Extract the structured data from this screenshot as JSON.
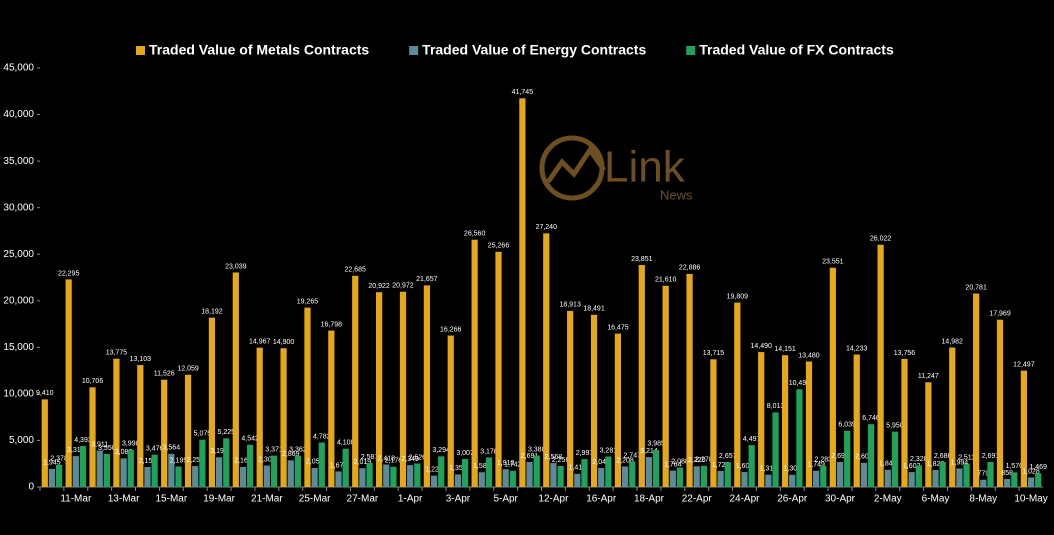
{
  "chart_data": {
    "type": "bar",
    "logo": {
      "text": "Link",
      "subtext": "News"
    },
    "categories": [
      null,
      "11-Mar",
      null,
      "13-Mar",
      null,
      "15-Mar",
      null,
      "19-Mar",
      null,
      "21-Mar",
      null,
      "25-Mar",
      null,
      "27-Mar",
      null,
      "1-Apr",
      null,
      "3-Apr",
      null,
      "5-Apr",
      null,
      "12-Apr",
      null,
      "16-Apr",
      null,
      "18-Apr",
      null,
      "22-Apr",
      null,
      "24-Apr",
      null,
      "26-Apr",
      null,
      "30-Apr",
      null,
      "2-May",
      null,
      "6-May",
      null,
      "8-May",
      null,
      "10-May"
    ],
    "series": [
      {
        "name": "Traded Value of Metals Contracts",
        "color": "#e6a817",
        "values": [
          9410,
          22295,
          10706,
          13775,
          13103,
          11526,
          12059,
          18192,
          23039,
          14967,
          14900,
          19265,
          16798,
          22685,
          20922,
          20972,
          21657,
          16266,
          26560,
          25266,
          41745,
          27240,
          18913,
          18491,
          16475,
          23851,
          21610,
          22886,
          13715,
          19809,
          14490,
          14151,
          13480,
          23551,
          14233,
          26022,
          13756,
          11247,
          14982,
          20781,
          17969,
          12497
        ],
        "value_labels": [
          "9,410",
          "22,295",
          "10,706",
          "13,775",
          "13,103",
          "11,526",
          "12,059",
          "18,192",
          "23,039",
          "14,967",
          "14,900",
          "19,265",
          "16,798",
          "22,685",
          "20,922",
          "20,972",
          "21,657",
          "16,266",
          "26,560",
          "25,266",
          "41,745",
          "27,240",
          "18,913",
          "18,491",
          "16,475",
          "23,851",
          "21,610",
          "22,886",
          "13,715",
          "19,809",
          "14,490",
          "14,151",
          "13,480",
          "23,551",
          "14,233",
          "26,022",
          "13,756",
          "11,247",
          "14,982",
          "20,781",
          "17,969",
          "12,497"
        ]
      },
      {
        "name": "Traded Value of Energy Contracts",
        "color": "#5b8a9a",
        "values": [
          1945,
          3315,
          3911,
          3082,
          2150,
          3564,
          2252,
          3197,
          2160,
          2306,
          2869,
          2053,
          1672,
          2019,
          2418,
          2349,
          1224,
          1353,
          1585,
          1910,
          2691,
          2568,
          1414,
          2047,
          2208,
          3214,
          1764,
          2220,
          1725,
          1603,
          1316,
          1302,
          1749,
          2691,
          2602,
          1849,
          1602,
          1826,
          1994,
          779,
          858,
          1028
        ],
        "value_labels": [
          "1,945",
          "3,315",
          "3,911",
          "3,082",
          "2,150",
          "3,564",
          "2,252",
          "3,197",
          "2,160",
          "2,306",
          "2,869",
          "2,053",
          "1,672",
          "2,019",
          "2,418",
          "2,349",
          "1,224",
          "1,353",
          "1,585",
          "1,910",
          "2,691",
          "2,568",
          "1,414",
          "2,047",
          "2,208",
          "3,214",
          "1,764",
          "2,220",
          "1,725",
          "1,603",
          "1,316",
          "1,302",
          "1,749",
          "2,691",
          "2,602",
          "1,849",
          "1,602",
          "1,826",
          "1,994",
          "779",
          "858",
          "1,028"
        ]
      },
      {
        "name": "Traded Value of FX Contracts",
        "color": "#1da35a",
        "values": [
          2378,
          4393,
          3550,
          3998,
          3476,
          2195,
          5075,
          5225,
          4542,
          3371,
          3362,
          4782,
          4108,
          2587,
          2176,
          2526,
          3294,
          3007,
          3178,
          1742,
          3388,
          2256,
          2997,
          3281,
          2747,
          3985,
          2088,
          2278,
          2657,
          4497,
          8013,
          10493,
          2283,
          6039,
          6746,
          5950,
          2328,
          2686,
          2511,
          2691,
          1576,
          1469
        ],
        "value_labels": [
          "2,378",
          "4,393",
          "3,550",
          "3,998",
          "3,476",
          "2,195",
          "5,075",
          "5,225",
          "4,542",
          "3,371",
          "3,362",
          "4,782",
          "4,108",
          "2,587",
          "2,176",
          "2,526",
          "3,294",
          "3,007",
          "3,178",
          "1,742",
          "3,388",
          "2,256",
          "2,997",
          "3,281",
          "2,747",
          "3,985",
          "2,088",
          "2,278",
          "2,657",
          "4,497",
          "8,013",
          "10,493",
          "2,283",
          "6,039",
          "6,746",
          "5,950",
          "2,328",
          "2,686",
          "2,511",
          "2,691",
          "1,576",
          "1,469"
        ]
      }
    ],
    "ylim": [
      0,
      45000
    ],
    "yticks": [
      0,
      {
        "value": 5000,
        "label": "5,000"
      },
      {
        "value": 10000,
        "label": "10,000"
      },
      {
        "value": 15000,
        "label": "15,000"
      },
      {
        "value": 20000,
        "label": "20,000"
      },
      {
        "value": 25000,
        "label": "25,000"
      },
      {
        "value": 30000,
        "label": "30,000"
      },
      {
        "value": 35000,
        "label": "35,000"
      },
      {
        "value": 40000,
        "label": "40,000"
      },
      {
        "value": 45000,
        "label": "45,000"
      }
    ],
    "legend": "top",
    "grid": false
  }
}
